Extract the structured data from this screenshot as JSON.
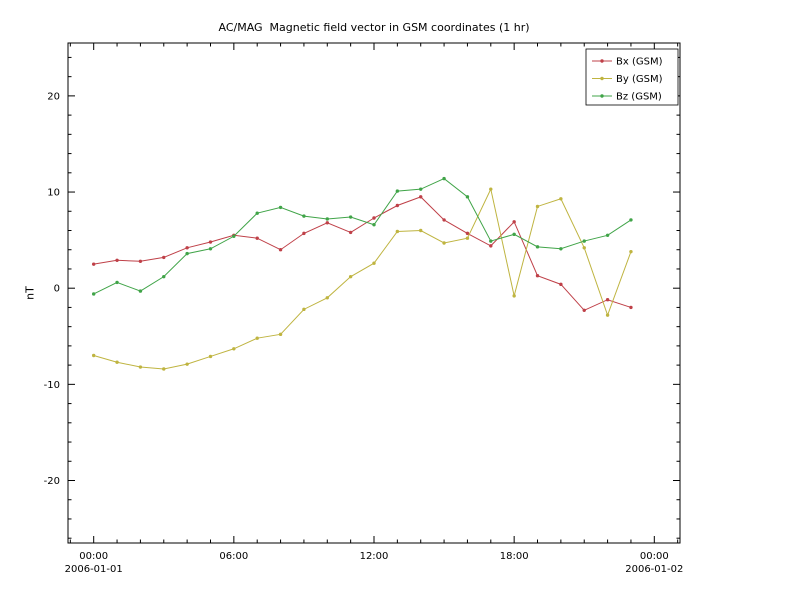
{
  "window": {
    "background": "#ffffff",
    "frame_color": "#000000"
  },
  "chart_data": {
    "type": "line",
    "title": "AC/MAG  Magnetic field vector in GSM coordinates (1 hr)",
    "xlabel": "",
    "ylabel": "nT",
    "xlim": [
      -1.1,
      25.1
    ],
    "ylim": [
      -26.5,
      25.5
    ],
    "grid": false,
    "legend_position": "top-right",
    "x_major_ticks": [
      {
        "value": 0,
        "label": "00:00",
        "date": "2006-01-01"
      },
      {
        "value": 6,
        "label": "06:00"
      },
      {
        "value": 12,
        "label": "12:00"
      },
      {
        "value": 18,
        "label": "18:00"
      },
      {
        "value": 24,
        "label": "00:00",
        "date": "2006-01-02"
      }
    ],
    "y_major_ticks": [
      {
        "value": -20,
        "label": "-20"
      },
      {
        "value": -10,
        "label": "-10"
      },
      {
        "value": 0,
        "label": "0"
      },
      {
        "value": 10,
        "label": "10"
      },
      {
        "value": 20,
        "label": "20"
      }
    ],
    "x_minor_step": 1,
    "y_minor_step": 2,
    "x_hours": [
      0,
      1,
      2,
      3,
      4,
      5,
      6,
      7,
      8,
      9,
      10,
      11,
      12,
      13,
      14,
      15,
      16,
      17,
      18,
      19,
      20,
      21,
      22,
      23
    ],
    "series": [
      {
        "name": "Bx (GSM)",
        "color": "#bf4048",
        "values": [
          2.5,
          2.9,
          2.8,
          3.2,
          4.2,
          4.8,
          5.5,
          5.2,
          4.0,
          5.7,
          6.8,
          5.8,
          7.3,
          8.6,
          9.5,
          7.1,
          5.7,
          4.4,
          6.9,
          1.3,
          0.4,
          -2.3,
          -1.2,
          -2.0
        ]
      },
      {
        "name": "By (GSM)",
        "color": "#bfb440",
        "values": [
          -7.0,
          -7.7,
          -8.2,
          -8.4,
          -7.9,
          -7.1,
          -6.3,
          -5.2,
          -4.8,
          -2.2,
          -1.0,
          1.2,
          2.6,
          5.9,
          6.0,
          4.7,
          5.2,
          10.3,
          -0.8,
          8.5,
          9.3,
          4.2,
          -2.8,
          3.8
        ]
      },
      {
        "name": "Bz (GSM)",
        "color": "#40a448",
        "values": [
          -0.6,
          0.6,
          -0.3,
          1.2,
          3.6,
          4.1,
          5.4,
          7.8,
          8.4,
          7.5,
          7.2,
          7.4,
          6.6,
          10.1,
          10.3,
          11.4,
          9.5,
          4.9,
          5.6,
          4.3,
          4.1,
          4.9,
          5.5,
          7.1
        ]
      }
    ]
  }
}
